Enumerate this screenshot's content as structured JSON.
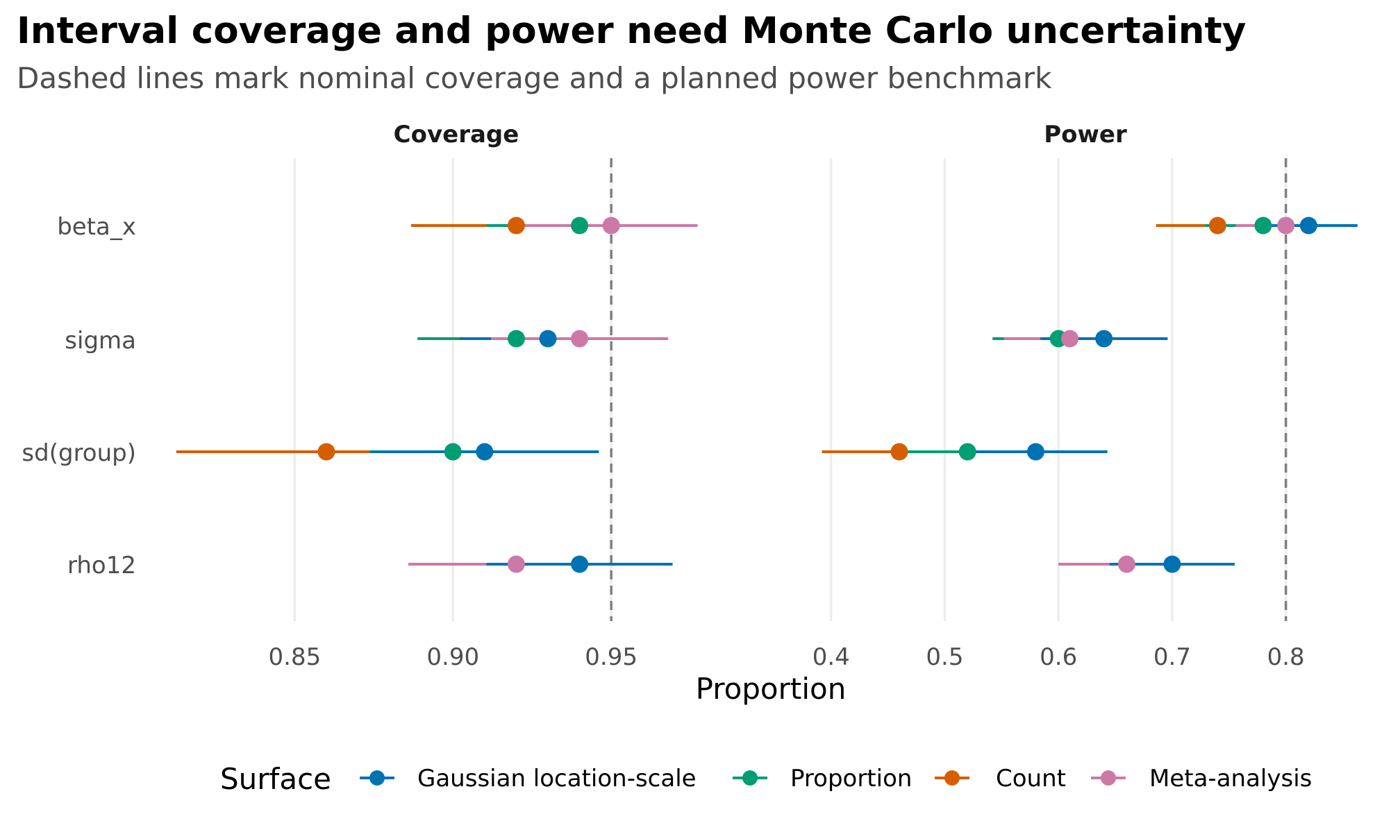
{
  "chart_data": {
    "type": "scatter",
    "title": "Interval coverage and power need Monte Carlo uncertainty",
    "subtitle": "Dashed lines mark nominal coverage and a planned power benchmark",
    "xlabel": "Proportion",
    "ylabel": "",
    "categories": [
      "beta_x",
      "sigma",
      "sd(group)",
      "rho12"
    ],
    "legend": {
      "title": "Surface",
      "position": "bottom"
    },
    "grid": true,
    "series": [
      {
        "name": "Gaussian location-scale",
        "color": "#0072B2"
      },
      {
        "name": "Proportion",
        "color": "#009E73"
      },
      {
        "name": "Count",
        "color": "#D55E00"
      },
      {
        "name": "Meta-analysis",
        "color": "#CC79A7"
      }
    ],
    "panels": [
      {
        "name": "Coverage",
        "xlim": [
          0.8135,
          0.9888
        ],
        "ticks": [
          0.85,
          0.9,
          0.95
        ],
        "tick_labels": [
          "0.85",
          "0.90",
          "0.95"
        ],
        "reference_line": 0.95,
        "points": [
          {
            "category": "beta_x",
            "series": "Count",
            "estimate": 0.92,
            "lower": 0.8868,
            "upper": 0.9532
          },
          {
            "category": "beta_x",
            "series": "Proportion",
            "estimate": 0.94,
            "lower": 0.9106,
            "upper": 0.9694
          },
          {
            "category": "beta_x",
            "series": "Meta-analysis",
            "estimate": 0.95,
            "lower": 0.9227,
            "upper": 0.9773
          },
          {
            "category": "sigma",
            "series": "Proportion",
            "estimate": 0.92,
            "lower": 0.8888,
            "upper": 0.9512
          },
          {
            "category": "sigma",
            "series": "Gaussian location-scale",
            "estimate": 0.93,
            "lower": 0.9021,
            "upper": 0.9579
          },
          {
            "category": "sigma",
            "series": "Meta-analysis",
            "estimate": 0.94,
            "lower": 0.912,
            "upper": 0.968
          },
          {
            "category": "sd(group)",
            "series": "Count",
            "estimate": 0.86,
            "lower": 0.8126,
            "upper": 0.9074
          },
          {
            "category": "sd(group)",
            "series": "Proportion",
            "estimate": 0.9,
            "lower": 0.8736,
            "upper": 0.9264
          },
          {
            "category": "sd(group)",
            "series": "Gaussian location-scale",
            "estimate": 0.91,
            "lower": 0.8739,
            "upper": 0.9461
          },
          {
            "category": "rho12",
            "series": "Meta-analysis",
            "estimate": 0.92,
            "lower": 0.8859,
            "upper": 0.9541
          },
          {
            "category": "rho12",
            "series": "Gaussian location-scale",
            "estimate": 0.94,
            "lower": 0.9106,
            "upper": 0.9694
          }
        ]
      },
      {
        "name": "Power",
        "xlim": [
          0.38,
          0.8674
        ],
        "ticks": [
          0.4,
          0.5,
          0.6,
          0.7,
          0.8
        ],
        "tick_labels": [
          "0.4",
          "0.5",
          "0.6",
          "0.7",
          "0.8"
        ],
        "reference_line": 0.8,
        "points": [
          {
            "category": "beta_x",
            "series": "Count",
            "estimate": 0.74,
            "lower": 0.6858,
            "upper": 0.7942
          },
          {
            "category": "beta_x",
            "series": "Proportion",
            "estimate": 0.78,
            "lower": 0.7286,
            "upper": 0.8314
          },
          {
            "category": "beta_x",
            "series": "Meta-analysis",
            "estimate": 0.8,
            "lower": 0.756,
            "upper": 0.844
          },
          {
            "category": "beta_x",
            "series": "Gaussian location-scale",
            "estimate": 0.82,
            "lower": 0.777,
            "upper": 0.863
          },
          {
            "category": "sigma",
            "series": "Proportion",
            "estimate": 0.6,
            "lower": 0.542,
            "upper": 0.658
          },
          {
            "category": "sigma",
            "series": "Meta-analysis",
            "estimate": 0.61,
            "lower": 0.552,
            "upper": 0.668
          },
          {
            "category": "sigma",
            "series": "Gaussian location-scale",
            "estimate": 0.64,
            "lower": 0.584,
            "upper": 0.696
          },
          {
            "category": "sd(group)",
            "series": "Count",
            "estimate": 0.46,
            "lower": 0.392,
            "upper": 0.528
          },
          {
            "category": "sd(group)",
            "series": "Proportion",
            "estimate": 0.52,
            "lower": 0.457,
            "upper": 0.583
          },
          {
            "category": "sd(group)",
            "series": "Gaussian location-scale",
            "estimate": 0.58,
            "lower": 0.517,
            "upper": 0.643
          },
          {
            "category": "rho12",
            "series": "Meta-analysis",
            "estimate": 0.66,
            "lower": 0.6,
            "upper": 0.72
          },
          {
            "category": "rho12",
            "series": "Gaussian location-scale",
            "estimate": 0.7,
            "lower": 0.645,
            "upper": 0.755
          }
        ]
      }
    ]
  }
}
